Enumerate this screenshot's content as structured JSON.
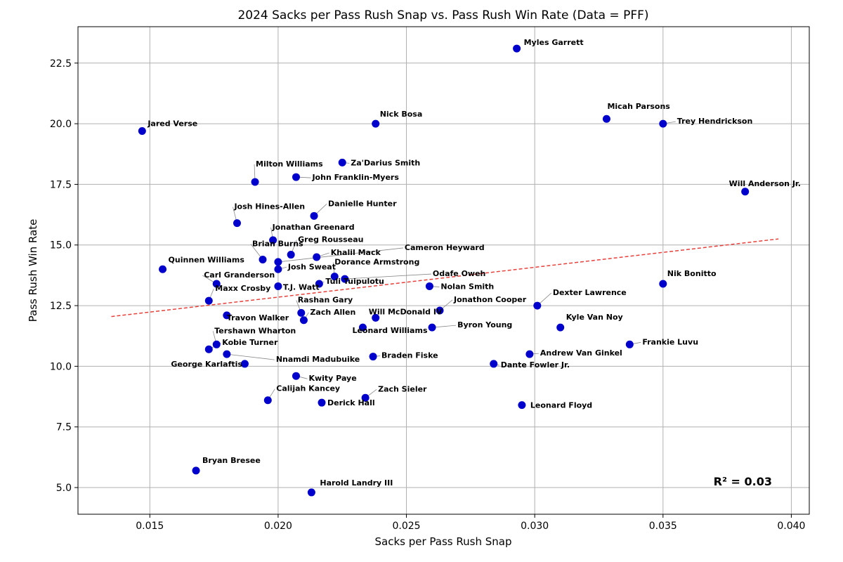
{
  "chart_data": {
    "type": "scatter",
    "title": "2024 Sacks per Pass Rush Snap vs. Pass Rush Win Rate (Data = PFF)",
    "xlabel": "Sacks per Pass Rush Snap",
    "ylabel": "Pass Rush Win Rate",
    "xlim": [
      0.0122,
      0.0407
    ],
    "ylim": [
      3.9,
      24.0
    ],
    "xticks": [
      "0.015",
      "0.020",
      "0.025",
      "0.030",
      "0.035",
      "0.040"
    ],
    "yticks": [
      "5.0",
      "7.5",
      "10.0",
      "12.5",
      "15.0",
      "17.5",
      "20.0",
      "22.5"
    ],
    "grid": true,
    "point_color": "#0000cc",
    "trend_color": "#e8403a",
    "trendline": {
      "x": [
        0.0135,
        0.0395
      ],
      "y": [
        12.05,
        15.25
      ]
    },
    "annotation": "R² = 0.03",
    "points": [
      {
        "name": "Myles Garrett",
        "x": 0.0293,
        "y": 23.1,
        "ldx": 10,
        "ldy": -5,
        "lead": false
      },
      {
        "name": "Nick Bosa",
        "x": 0.0238,
        "y": 20.0,
        "ldx": 6,
        "ldy": -10,
        "lead": false
      },
      {
        "name": "Micah Parsons",
        "x": 0.0328,
        "y": 20.2,
        "ldx": 1,
        "ldy": -14,
        "lead": false
      },
      {
        "name": "Trey Hendrickson",
        "x": 0.035,
        "y": 20.0,
        "ldx": 20,
        "ldy": 0,
        "lead": true
      },
      {
        "name": "Jared Verse",
        "x": 0.0147,
        "y": 19.7,
        "ldx": 8,
        "ldy": -7,
        "lead": false
      },
      {
        "name": "Will Anderson Jr.",
        "x": 0.0382,
        "y": 17.2,
        "ldx": -23,
        "ldy": -8,
        "lead": false
      },
      {
        "name": "Za'Darius Smith",
        "x": 0.0225,
        "y": 18.4,
        "ldx": 12,
        "ldy": 4,
        "lead": true
      },
      {
        "name": "Milton Williams",
        "x": 0.0191,
        "y": 17.6,
        "ldx": 1,
        "ldy": -22,
        "lead": true
      },
      {
        "name": "John Franklin-Myers",
        "x": 0.0207,
        "y": 17.8,
        "ldx": 23,
        "ldy": 4,
        "lead": true
      },
      {
        "name": "Danielle Hunter",
        "x": 0.0214,
        "y": 16.2,
        "ldx": 20,
        "ldy": -14,
        "lead": true
      },
      {
        "name": "Josh Hines-Allen",
        "x": 0.0184,
        "y": 15.9,
        "ldx": -4,
        "ldy": -20,
        "lead": true
      },
      {
        "name": "Jonathan Greenard",
        "x": 0.0198,
        "y": 15.2,
        "ldx": -1,
        "ldy": -15,
        "lead": true
      },
      {
        "name": "Greg Rousseau",
        "x": 0.0205,
        "y": 14.6,
        "ldx": 10,
        "ldy": -18,
        "lead": true
      },
      {
        "name": "Brian Burns",
        "x": 0.0194,
        "y": 14.4,
        "ldx": -15,
        "ldy": -19,
        "lead": true
      },
      {
        "name": "Khalil Mack",
        "x": 0.0215,
        "y": 14.5,
        "ldx": 20,
        "ldy": -3,
        "lead": true
      },
      {
        "name": "Cameron Heyward",
        "x": 0.02,
        "y": 14.3,
        "ldx": 180,
        "ldy": -17,
        "lead": true
      },
      {
        "name": "Quinnen Williams",
        "x": 0.0155,
        "y": 14.0,
        "ldx": 8,
        "ldy": -10,
        "lead": false
      },
      {
        "name": "Josh Sweat",
        "x": 0.02,
        "y": 14.0,
        "ldx": 14,
        "ldy": 0,
        "lead": true
      },
      {
        "name": "Dorance Armstrong",
        "x": 0.0222,
        "y": 13.7,
        "ldx": 0,
        "ldy": -17,
        "lead": true
      },
      {
        "name": "Odafe Oweh",
        "x": 0.0226,
        "y": 13.6,
        "ldx": 125,
        "ldy": -4,
        "lead": true
      },
      {
        "name": "Carl Granderson",
        "x": 0.0176,
        "y": 13.4,
        "ldx": -18,
        "ldy": -9,
        "lead": true
      },
      {
        "name": "T.J. Watt",
        "x": 0.02,
        "y": 13.3,
        "ldx": 7,
        "ldy": 5,
        "lead": true
      },
      {
        "name": "Tuli Tuipulotu",
        "x": 0.0216,
        "y": 13.4,
        "ldx": 9,
        "ldy": 0,
        "lead": true
      },
      {
        "name": "Nolan Smith",
        "x": 0.0259,
        "y": 13.3,
        "ldx": 16,
        "ldy": 4,
        "lead": true
      },
      {
        "name": "Nik Bonitto",
        "x": 0.035,
        "y": 13.4,
        "ldx": 6,
        "ldy": -11,
        "lead": false
      },
      {
        "name": "Maxx Crosby",
        "x": 0.0173,
        "y": 12.7,
        "ldx": 9,
        "ldy": -14,
        "lead": true
      },
      {
        "name": "Rashan Gary",
        "x": 0.0209,
        "y": 12.2,
        "ldx": -5,
        "ldy": -15,
        "lead": true
      },
      {
        "name": "Zach Allen",
        "x": 0.021,
        "y": 11.9,
        "ldx": 9,
        "ldy": -8,
        "lead": true
      },
      {
        "name": "Travon Walker",
        "x": 0.018,
        "y": 12.1,
        "ldx": 0,
        "ldy": 7,
        "lead": true
      },
      {
        "name": "Will McDonald IV",
        "x": 0.0238,
        "y": 12.0,
        "ldx": -10,
        "ldy": -5,
        "lead": false
      },
      {
        "name": "Jonathon Cooper",
        "x": 0.0263,
        "y": 12.3,
        "ldx": 20,
        "ldy": -12,
        "lead": true
      },
      {
        "name": "Dexter Lawrence",
        "x": 0.0301,
        "y": 12.5,
        "ldx": 22,
        "ldy": -15,
        "lead": true
      },
      {
        "name": "Kyle Van Noy",
        "x": 0.031,
        "y": 11.6,
        "ldx": 8,
        "ldy": -11,
        "lead": false
      },
      {
        "name": "Leonard Williams",
        "x": 0.0233,
        "y": 11.6,
        "ldx": -15,
        "ldy": 8,
        "lead": false
      },
      {
        "name": "Byron Young",
        "x": 0.026,
        "y": 11.6,
        "ldx": 36,
        "ldy": 0,
        "lead": true
      },
      {
        "name": "Frankie Luvu",
        "x": 0.0337,
        "y": 10.9,
        "ldx": 18,
        "ldy": 0,
        "lead": true
      },
      {
        "name": "Tershawn Wharton",
        "x": 0.0176,
        "y": 10.9,
        "ldx": -3,
        "ldy": -16,
        "lead": true
      },
      {
        "name": "Kobie Turner",
        "x": 0.0173,
        "y": 10.7,
        "ldx": 19,
        "ldy": -6,
        "lead": true
      },
      {
        "name": "Nnamdi Madubuike",
        "x": 0.018,
        "y": 10.5,
        "ldx": 70,
        "ldy": 11,
        "lead": true
      },
      {
        "name": "Andrew Van Ginkel",
        "x": 0.0298,
        "y": 10.5,
        "ldx": 15,
        "ldy": 2,
        "lead": true
      },
      {
        "name": "George Karlaftis",
        "x": 0.0187,
        "y": 10.1,
        "ldx": -105,
        "ldy": 4,
        "lead": false
      },
      {
        "name": "Braden Fiske",
        "x": 0.0237,
        "y": 10.4,
        "ldx": 12,
        "ldy": 2,
        "lead": true
      },
      {
        "name": "Dante Fowler Jr.",
        "x": 0.0284,
        "y": 10.1,
        "ldx": 10,
        "ldy": 5,
        "lead": true
      },
      {
        "name": "Kwity Paye",
        "x": 0.0207,
        "y": 9.6,
        "ldx": 18,
        "ldy": 7,
        "lead": true
      },
      {
        "name": "Calijah Kancey",
        "x": 0.0196,
        "y": 8.6,
        "ldx": 12,
        "ldy": -13,
        "lead": true
      },
      {
        "name": "Zach Sieler",
        "x": 0.0234,
        "y": 8.7,
        "ldx": 18,
        "ldy": -9,
        "lead": true
      },
      {
        "name": "Derick Hall",
        "x": 0.0217,
        "y": 8.5,
        "ldx": 8,
        "ldy": 4,
        "lead": false
      },
      {
        "name": "Leonard Floyd",
        "x": 0.0295,
        "y": 8.4,
        "ldx": 12,
        "ldy": 4,
        "lead": false
      },
      {
        "name": "Bryan Bresee",
        "x": 0.0168,
        "y": 5.7,
        "ldx": 9,
        "ldy": -11,
        "lead": false
      },
      {
        "name": "Harold Landry III",
        "x": 0.0213,
        "y": 4.8,
        "ldx": 12,
        "ldy": -10,
        "lead": false
      }
    ]
  }
}
